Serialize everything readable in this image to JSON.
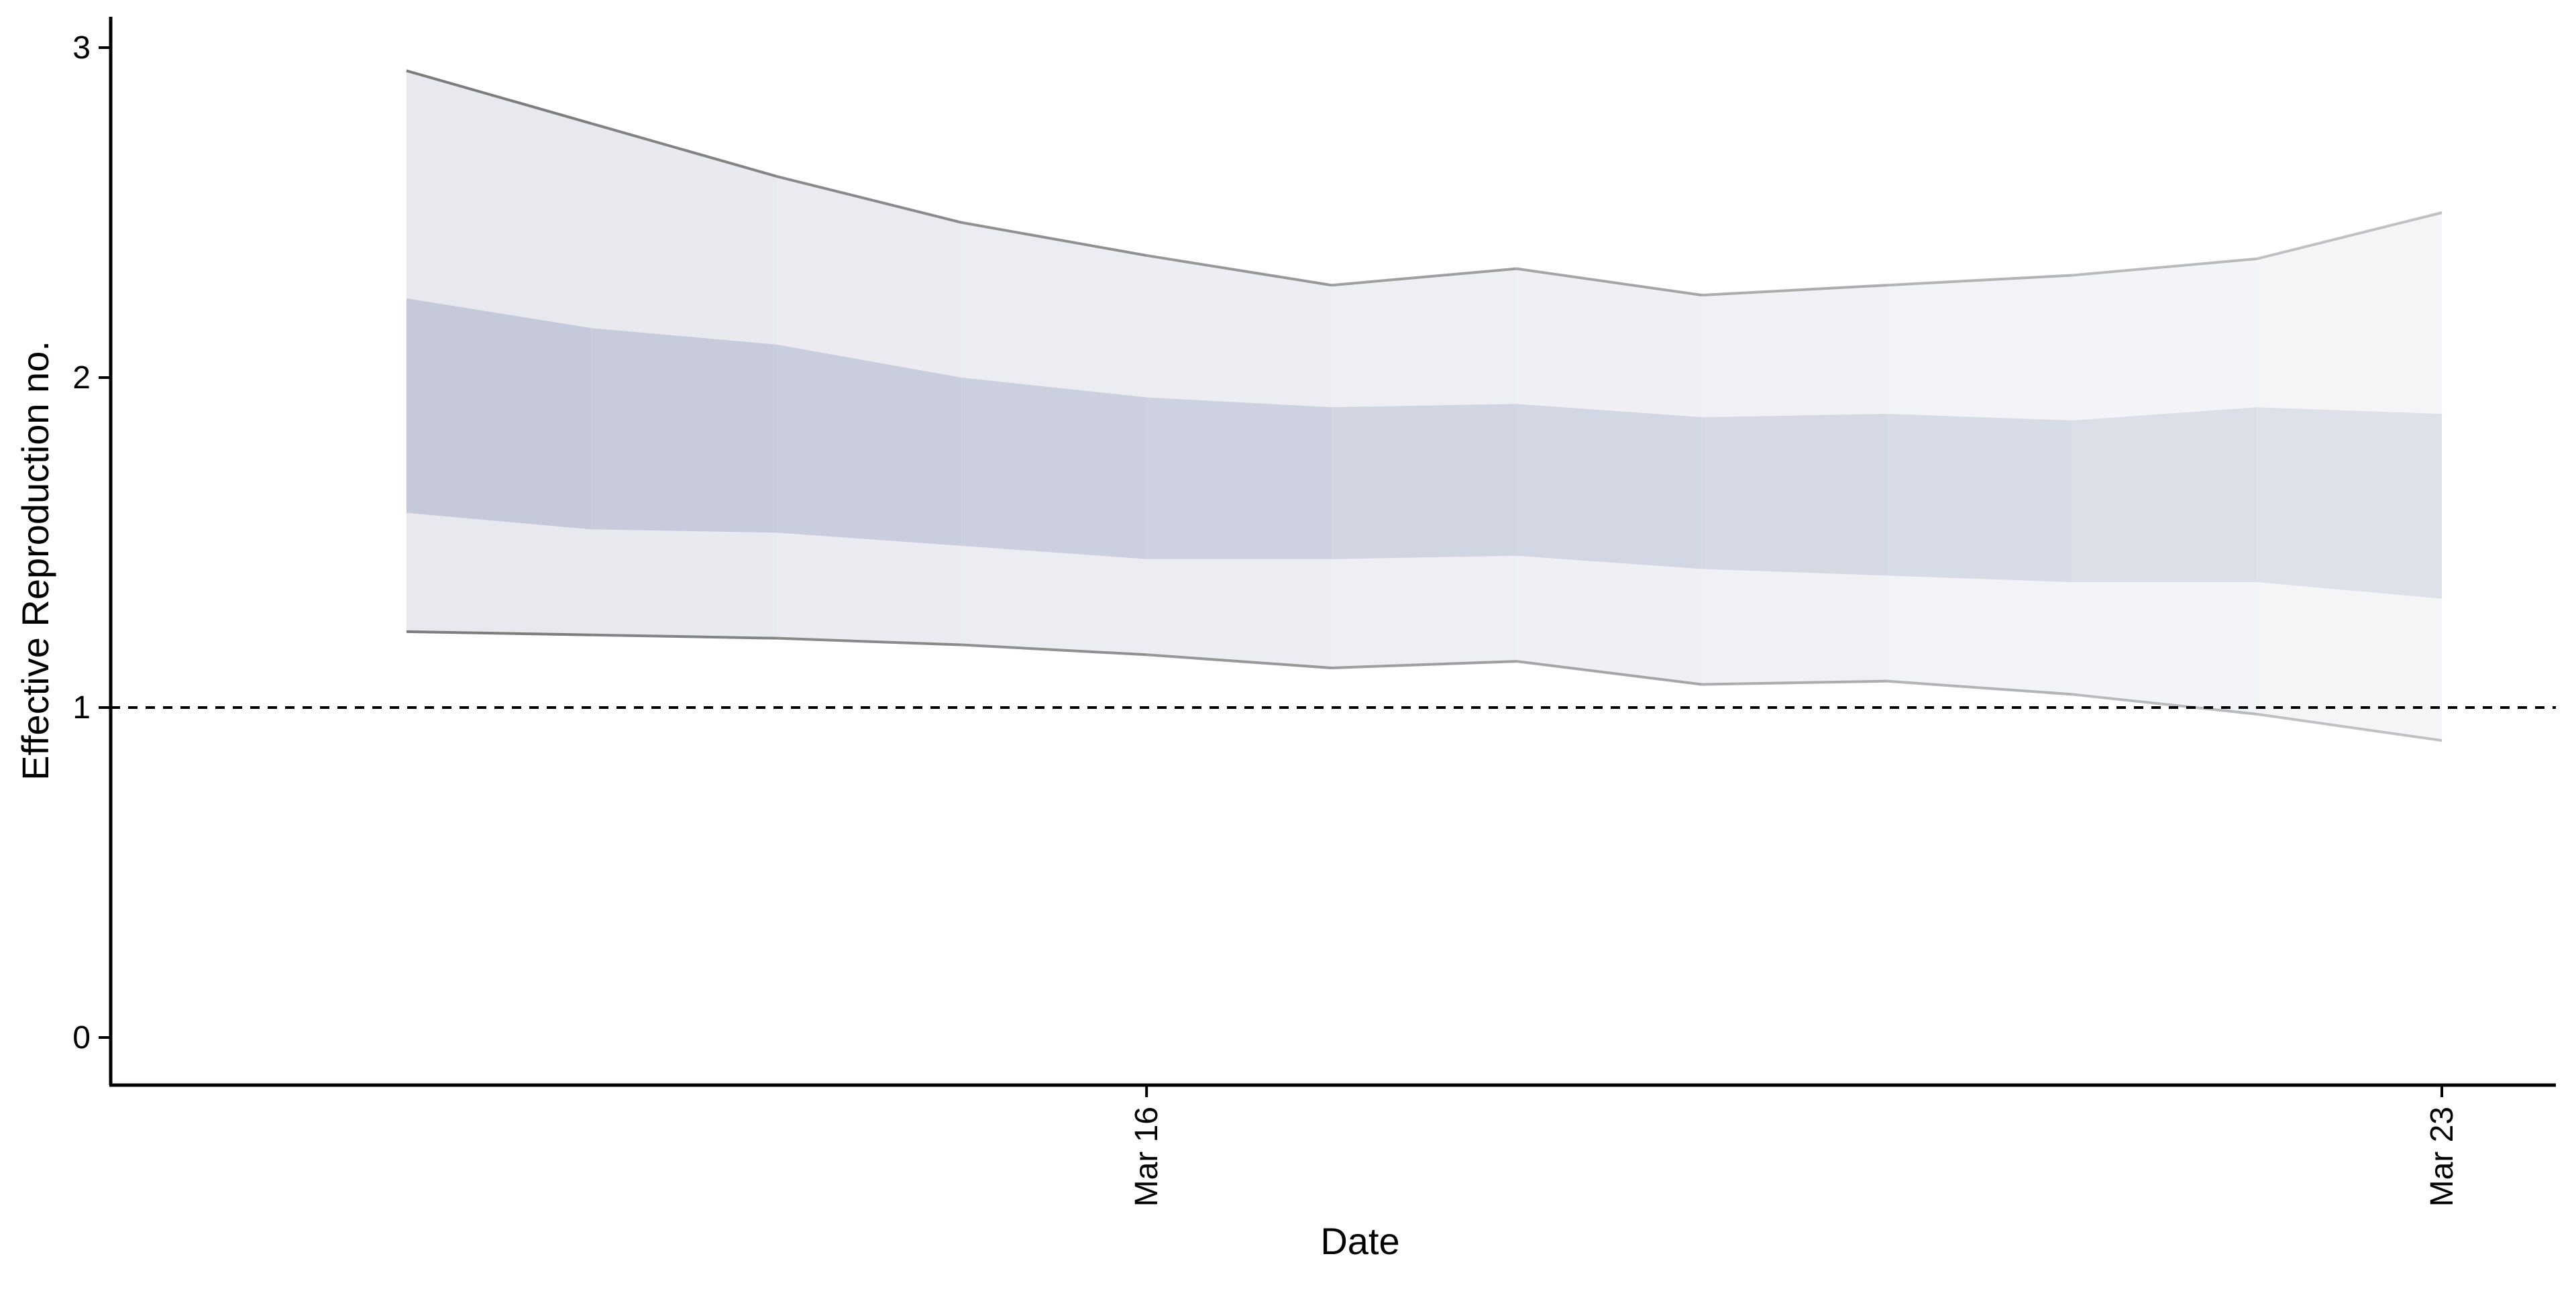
{
  "chart_data": {
    "type": "area",
    "xlabel": "Date",
    "ylabel": "Effective Reproduction no.",
    "x_ticks": [
      "Mar 16",
      "Mar 23"
    ],
    "y_ticks": [
      "0",
      "1",
      "2",
      "3"
    ],
    "xlim": [
      "2020-03-11",
      "2020-03-23"
    ],
    "ylim": [
      0,
      3
    ],
    "grid": false,
    "legend": "none",
    "reference_line": {
      "y": 1,
      "style": "dashed"
    },
    "dates": [
      "2020-03-12",
      "2020-03-13",
      "2020-03-14",
      "2020-03-15",
      "2020-03-16",
      "2020-03-17",
      "2020-03-18",
      "2020-03-19",
      "2020-03-20",
      "2020-03-21",
      "2020-03-22",
      "2020-03-23"
    ],
    "series": [
      {
        "band": "outer",
        "lower": [
          1.23,
          1.22,
          1.21,
          1.19,
          1.16,
          1.12,
          1.14,
          1.07,
          1.08,
          1.04,
          0.98,
          0.9
        ],
        "upper": [
          2.93,
          2.77,
          2.61,
          2.47,
          2.37,
          2.28,
          2.33,
          2.25,
          2.28,
          2.31,
          2.36,
          2.5
        ]
      },
      {
        "band": "inner",
        "lower": [
          1.59,
          1.54,
          1.53,
          1.49,
          1.45,
          1.45,
          1.46,
          1.42,
          1.4,
          1.38,
          1.38,
          1.33
        ],
        "upper": [
          2.24,
          2.15,
          2.1,
          2.0,
          1.94,
          1.91,
          1.92,
          1.88,
          1.89,
          1.87,
          1.91,
          1.89
        ]
      }
    ],
    "colors": {
      "inner": "#c5c9da",
      "outer": "#e8e9ef",
      "bound_line": "#7d7d7d",
      "reference_line": "#000000"
    }
  }
}
